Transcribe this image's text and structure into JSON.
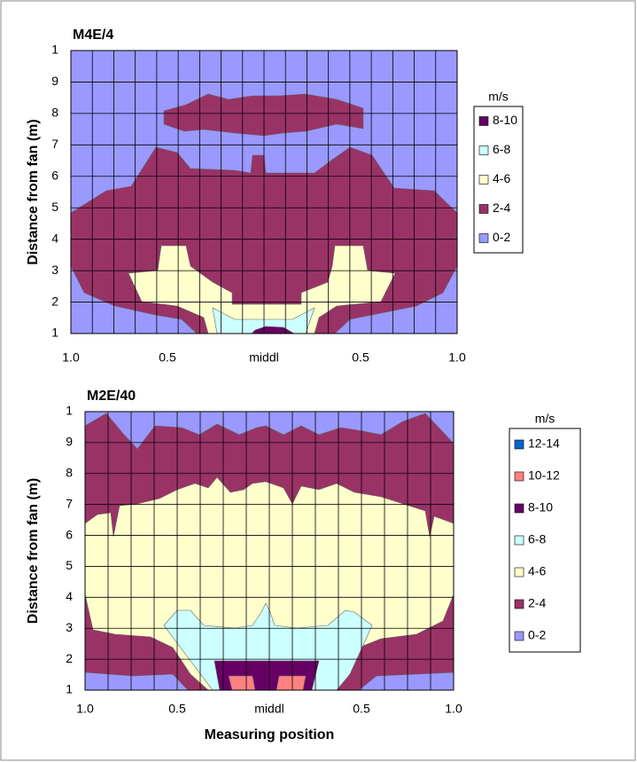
{
  "chart_data": [
    {
      "type": "contour",
      "title": "M4E/4",
      "ylabel": "Distance from fan (m)",
      "ylim": [
        1,
        10
      ],
      "yticks": [
        {
          "value": 10,
          "label": "1"
        },
        9,
        8,
        7,
        6,
        5,
        4,
        3,
        2,
        1
      ],
      "xticks": [
        "1.0",
        "0.5",
        "middl",
        "0.5",
        "1.0"
      ],
      "grid": true,
      "legend_title": "m/s",
      "legend": [
        {
          "name": "8-10",
          "color": "#660066"
        },
        {
          "name": "6-8",
          "color": "#ccffff"
        },
        {
          "name": "4-6",
          "color": "#ffffcc"
        },
        {
          "name": "2-4",
          "color": "#993366"
        },
        {
          "name": "0-2",
          "color": "#9999ff"
        }
      ]
    },
    {
      "type": "contour",
      "title": "M2E/40",
      "ylabel": "Distance from fan (m)",
      "xlabel": "Measuring position",
      "ylim": [
        1,
        10
      ],
      "yticks": [
        {
          "value": 10,
          "label": "1"
        },
        9,
        8,
        7,
        6,
        5,
        4,
        3,
        2,
        1
      ],
      "xticks": [
        "1.0",
        "0.5",
        "middl",
        "0.5",
        "1.0"
      ],
      "grid": true,
      "legend_title": "m/s",
      "legend": [
        {
          "name": "12-14",
          "color": "#0066cc"
        },
        {
          "name": "10-12",
          "color": "#ff8080"
        },
        {
          "name": "8-10",
          "color": "#660066"
        },
        {
          "name": "6-8",
          "color": "#ccffff"
        },
        {
          "name": "4-6",
          "color": "#ffffcc"
        },
        {
          "name": "2-4",
          "color": "#993366"
        },
        {
          "name": "0-2",
          "color": "#9999ff"
        }
      ]
    }
  ]
}
